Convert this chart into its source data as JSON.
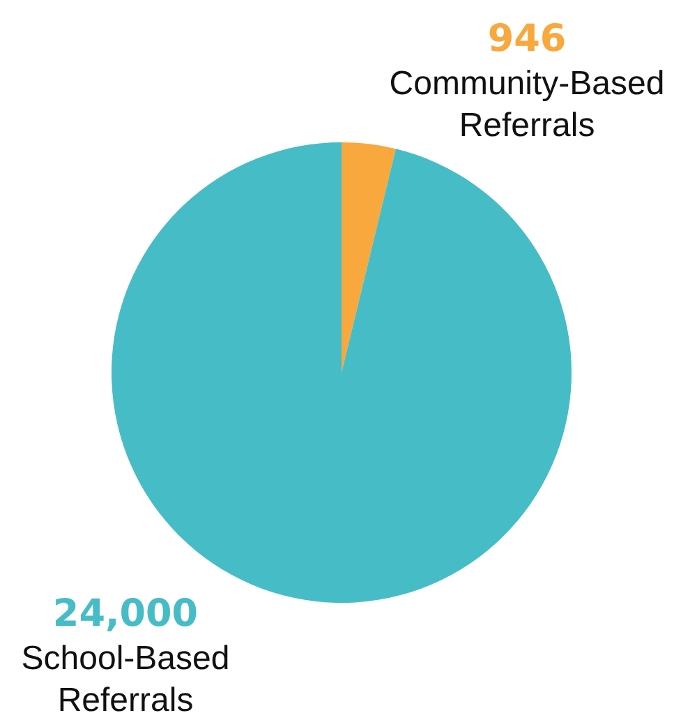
{
  "chart_data": {
    "type": "pie",
    "categories": [
      "Community-Based Referrals",
      "School-Based Referrals"
    ],
    "values": [
      946,
      24000
    ],
    "colors": [
      "#f9a83d",
      "#46bcc6"
    ],
    "value_labels": [
      "946",
      "24,000"
    ],
    "legend": false
  }
}
